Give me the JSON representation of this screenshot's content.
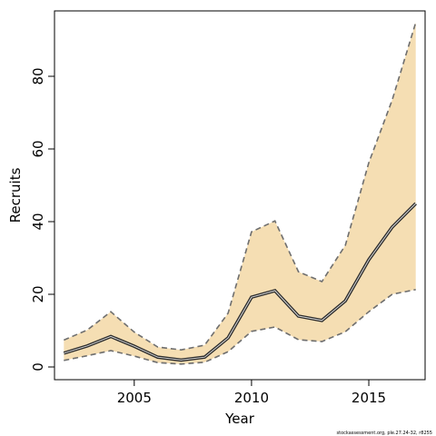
{
  "chart_data": {
    "type": "area",
    "xlabel": "Year",
    "ylabel": "Recruits",
    "xlim": [
      2001.6,
      2017.4
    ],
    "ylim": [
      -3.5,
      98
    ],
    "x_ticks": [
      2005,
      2010,
      2015
    ],
    "y_ticks": [
      0,
      20,
      40,
      60,
      80
    ],
    "grid": false,
    "legend": "none",
    "x": [
      2002,
      2003,
      2004,
      2005,
      2006,
      2007,
      2008,
      2009,
      2010,
      2011,
      2012,
      2013,
      2014,
      2015,
      2016,
      2017
    ],
    "series": [
      {
        "role": "estimate",
        "values": [
          3.8,
          5.8,
          8.4,
          5.7,
          2.7,
          1.9,
          2.7,
          8.0,
          19.2,
          21.0,
          14.0,
          12.8,
          18.2,
          29.5,
          38.5,
          45.0
        ]
      },
      {
        "role": "lower",
        "values": [
          1.8,
          3.1,
          4.5,
          3.0,
          1.2,
          0.8,
          1.3,
          4.2,
          9.8,
          11.0,
          7.5,
          7.0,
          9.7,
          15.2,
          20.0,
          21.3
        ]
      },
      {
        "role": "upper",
        "values": [
          7.4,
          10.2,
          15.2,
          9.6,
          5.5,
          4.7,
          6.0,
          14.8,
          37.2,
          40.2,
          26.2,
          23.5,
          33.5,
          56.2,
          73.5,
          94.8
        ]
      }
    ],
    "colors": {
      "band_fill": "#f5deb3",
      "estimate_line": "#2b2b2b",
      "bound_line": "#6e6e6e",
      "axis": "#000000"
    },
    "credit": "stockassessment.org, ple.27.24-32, r8255"
  }
}
